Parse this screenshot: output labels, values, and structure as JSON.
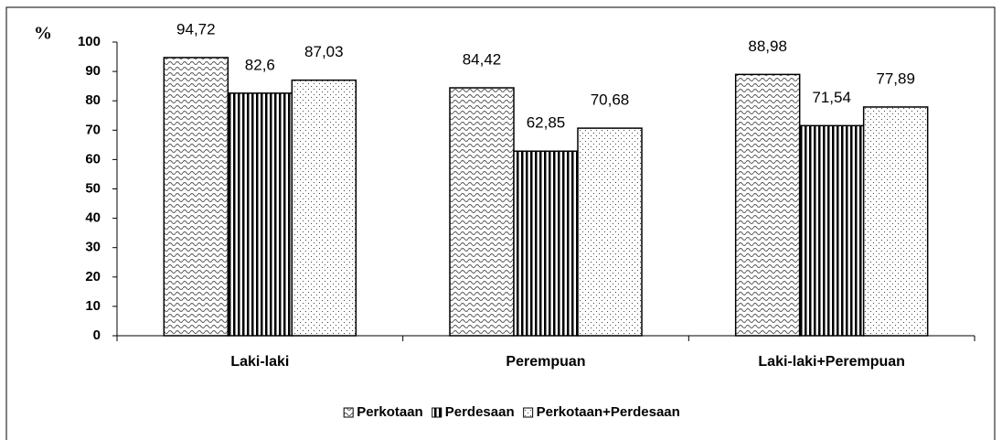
{
  "chart_data": {
    "type": "bar",
    "y_label": "%",
    "categories": [
      "Laki-laki",
      "Perempuan",
      "Laki-laki+Perempuan"
    ],
    "series": [
      {
        "name": "Perkotaan",
        "values": [
          94.72,
          84.42,
          88.98
        ],
        "value_labels": [
          "94,72",
          "84,42",
          "88,98"
        ]
      },
      {
        "name": "Perdesaan",
        "values": [
          82.6,
          62.85,
          71.54
        ],
        "value_labels": [
          "82,6",
          "62,85",
          "71,54"
        ]
      },
      {
        "name": "Perkotaan+Perdesaan",
        "values": [
          87.03,
          70.68,
          77.89
        ],
        "value_labels": [
          "87,03",
          "70,68",
          "77,89"
        ]
      }
    ],
    "ylim": [
      0,
      100
    ],
    "yticks": [
      0,
      10,
      20,
      30,
      40,
      50,
      60,
      70,
      80,
      90,
      100
    ],
    "legend": "bottom"
  }
}
